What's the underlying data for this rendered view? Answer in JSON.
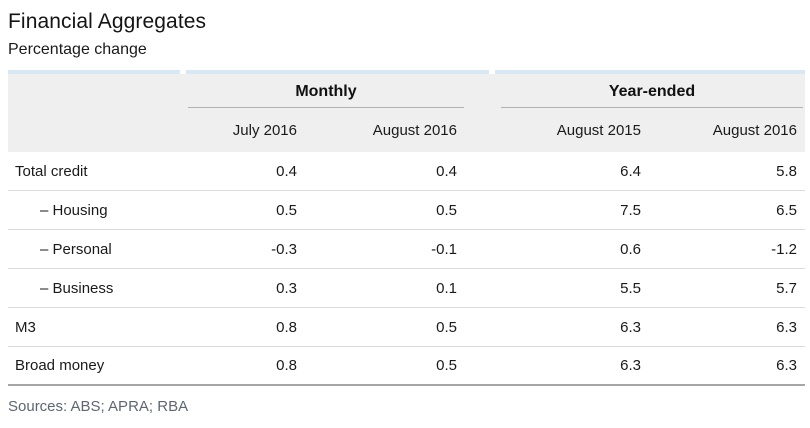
{
  "title": "Financial Aggregates",
  "subtitle": "Percentage change",
  "table": {
    "groups": [
      {
        "label": "Monthly"
      },
      {
        "label": "Year-ended"
      }
    ],
    "columns": [
      "July 2016",
      "August 2016",
      "August 2015",
      "August 2016"
    ],
    "rows": [
      {
        "label": "Total credit"
      },
      {
        "label": "– Housing"
      },
      {
        "label": "– Personal"
      },
      {
        "label": "– Business"
      },
      {
        "label": "M3"
      },
      {
        "label": "Broad money"
      }
    ]
  },
  "chart_data": {
    "type": "table",
    "title": "Financial Aggregates",
    "subtitle": "Percentage change",
    "column_groups": [
      {
        "label": "Monthly",
        "span": 2
      },
      {
        "label": "Year-ended",
        "span": 2
      }
    ],
    "columns": [
      "July 2016",
      "August 2016",
      "August 2015",
      "August 2016"
    ],
    "row_labels": [
      "Total credit",
      "Housing",
      "Personal",
      "Business",
      "M3",
      "Broad money"
    ],
    "indented_rows": [
      "Housing",
      "Personal",
      "Business"
    ],
    "values": [
      [
        0.4,
        0.4,
        6.4,
        5.8
      ],
      [
        0.5,
        0.5,
        7.5,
        6.5
      ],
      [
        -0.3,
        -0.1,
        0.6,
        -1.2
      ],
      [
        0.3,
        0.1,
        5.5,
        5.7
      ],
      [
        0.8,
        0.5,
        6.3,
        6.3
      ],
      [
        0.8,
        0.5,
        6.3,
        6.3
      ]
    ],
    "units": "percentage change"
  },
  "footer": {
    "sources": "Sources: ABS; APRA; RBA"
  },
  "colors": {
    "header_accent_strip": "#d9e8f5",
    "header_background": "#efefef",
    "row_separator": "#dcdcdc",
    "table_bottom_border": "#a6a6a6",
    "group_underline": "#b2b2b2",
    "text": "#1a1a1a",
    "sources_text": "#5d6771"
  }
}
